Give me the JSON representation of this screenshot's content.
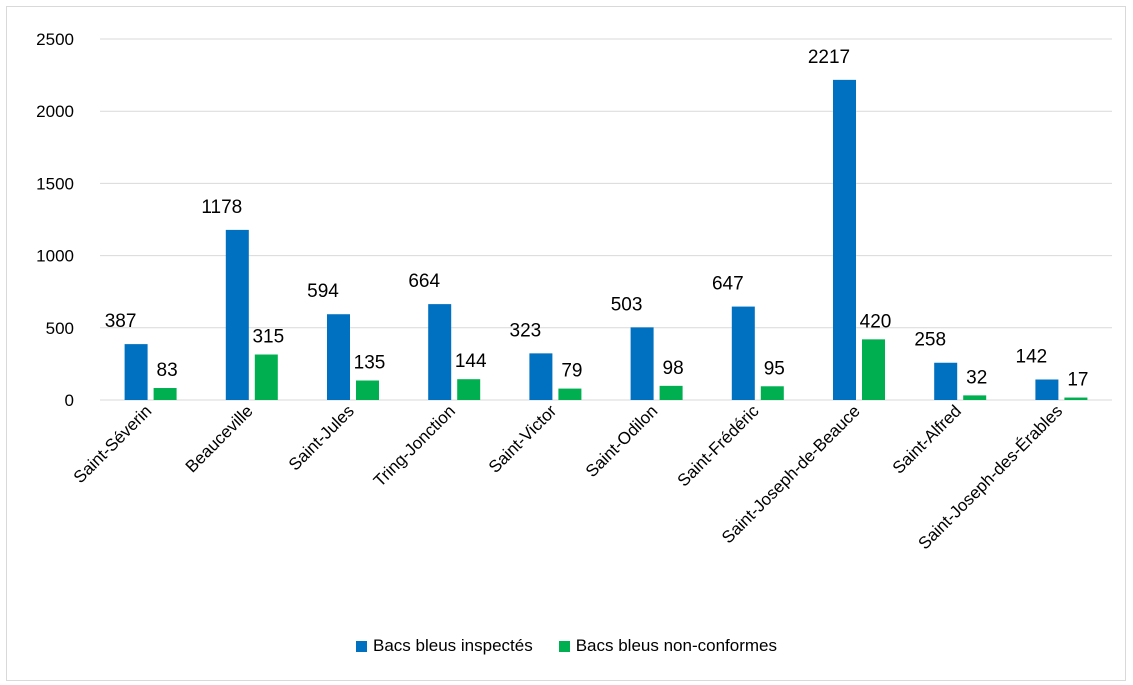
{
  "colors": {
    "inspected": "#0070C0",
    "nonconform": "#00B050",
    "grid": "#d9d9d9"
  },
  "chart_data": {
    "type": "bar",
    "categories": [
      "Saint-Séverin",
      "Beauceville",
      "Saint-Jules",
      "Tring-Jonction",
      "Saint-Victor",
      "Saint-Odilon",
      "Saint-Frédéric",
      "Saint-Joseph-de-Beauce",
      "Saint-Alfred",
      "Saint-Joseph-des-Érables"
    ],
    "series": [
      {
        "name": "Bacs bleus inspectés",
        "values": [
          387,
          1178,
          594,
          664,
          323,
          503,
          647,
          2217,
          258,
          142
        ]
      },
      {
        "name": "Bacs bleus non-conformes",
        "values": [
          83,
          315,
          135,
          144,
          79,
          98,
          95,
          420,
          32,
          17
        ]
      }
    ],
    "yticks": [
      "0",
      "500",
      "1000",
      "1500",
      "2000",
      "2500"
    ],
    "ylim": [
      0,
      2500
    ],
    "grid": true,
    "legend": "bottom",
    "data_labels": true
  }
}
